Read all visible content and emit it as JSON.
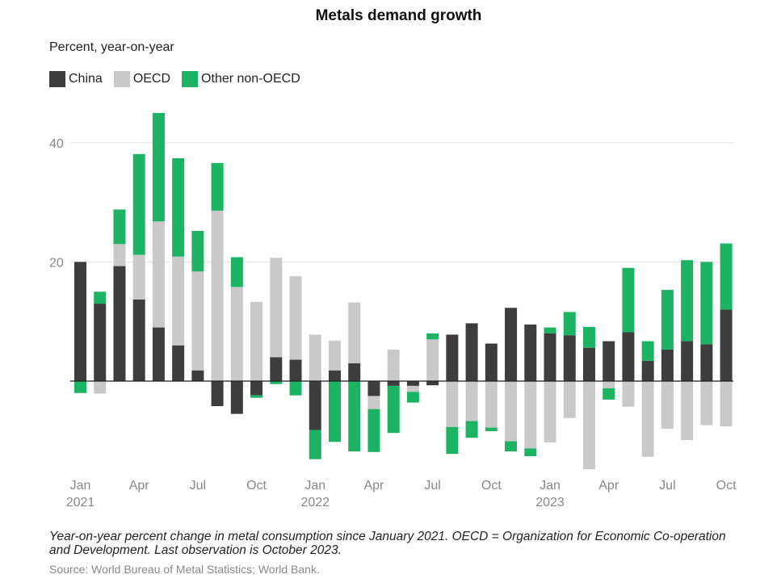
{
  "chart_data": {
    "type": "bar",
    "stacked": true,
    "title": "Metals demand growth",
    "ylabel": "Percent, year-on-year",
    "xlabel": "",
    "ylim": [
      -16,
      47
    ],
    "yticks": [
      20,
      40
    ],
    "grid": true,
    "legend_position": "top-left",
    "categories": [
      "2021-01",
      "2021-02",
      "2021-03",
      "2021-04",
      "2021-05",
      "2021-06",
      "2021-07",
      "2021-08",
      "2021-09",
      "2021-10",
      "2021-11",
      "2021-12",
      "2022-01",
      "2022-02",
      "2022-03",
      "2022-04",
      "2022-05",
      "2022-06",
      "2022-07",
      "2022-08",
      "2022-09",
      "2022-10",
      "2022-11",
      "2022-12",
      "2023-01",
      "2023-02",
      "2023-03",
      "2023-04",
      "2023-05",
      "2023-06",
      "2023-07",
      "2023-08",
      "2023-09",
      "2023-10"
    ],
    "x_tick_labels": [
      {
        "index": 0,
        "line1": "Jan",
        "line2": "2021"
      },
      {
        "index": 3,
        "line1": "Apr",
        "line2": ""
      },
      {
        "index": 6,
        "line1": "Jul",
        "line2": ""
      },
      {
        "index": 9,
        "line1": "Oct",
        "line2": ""
      },
      {
        "index": 12,
        "line1": "Jan",
        "line2": "2022"
      },
      {
        "index": 15,
        "line1": "Apr",
        "line2": ""
      },
      {
        "index": 18,
        "line1": "Jul",
        "line2": ""
      },
      {
        "index": 21,
        "line1": "Oct",
        "line2": ""
      },
      {
        "index": 24,
        "line1": "Jan",
        "line2": "2023"
      },
      {
        "index": 27,
        "line1": "Apr",
        "line2": ""
      },
      {
        "index": 30,
        "line1": "Jul",
        "line2": ""
      },
      {
        "index": 33,
        "line1": "Oct",
        "line2": ""
      }
    ],
    "series": [
      {
        "name": "China",
        "color": "#3d3d3d",
        "values": [
          20.0,
          13.0,
          19.3,
          13.7,
          9.0,
          6.0,
          1.8,
          -4.2,
          -5.5,
          -2.4,
          4.0,
          3.6,
          -8.2,
          1.8,
          3.0,
          -2.5,
          -0.8,
          -0.8,
          -0.7,
          7.8,
          9.7,
          6.3,
          12.3,
          9.5,
          8.0,
          7.7,
          5.6,
          6.7,
          8.2,
          3.4,
          5.3,
          6.7,
          6.2,
          12.0
        ]
      },
      {
        "name": "OECD",
        "color": "#c9c9c9",
        "values": [
          0.0,
          -2.1,
          3.7,
          7.5,
          17.8,
          14.9,
          16.6,
          28.6,
          15.8,
          13.3,
          16.7,
          14.0,
          7.8,
          5.0,
          10.2,
          -2.2,
          5.3,
          -1.0,
          7.0,
          -7.7,
          -6.7,
          -7.8,
          -10.1,
          -11.3,
          -10.3,
          -6.2,
          -14.8,
          -1.2,
          -4.3,
          -12.7,
          -8.0,
          -9.9,
          -7.4,
          -7.6
        ]
      },
      {
        "name": "Other non-OECD",
        "color": "#1db364",
        "values": [
          -2.0,
          2.0,
          5.8,
          16.9,
          18.2,
          16.5,
          6.8,
          8.0,
          5.0,
          -0.4,
          -0.5,
          -2.4,
          -4.9,
          -10.2,
          -11.8,
          -7.2,
          -7.9,
          -1.8,
          1.0,
          -4.5,
          -2.8,
          -0.6,
          -1.7,
          -1.3,
          1.0,
          3.9,
          3.5,
          -1.9,
          10.8,
          3.3,
          10.0,
          13.6,
          13.8,
          11.1
        ]
      }
    ]
  },
  "legend": [
    {
      "label": "China",
      "color": "#3d3d3d"
    },
    {
      "label": "OECD",
      "color": "#c9c9c9"
    },
    {
      "label": "Other non-OECD",
      "color": "#1db364"
    }
  ],
  "note": "Year-on-year percent change in metal consumption since January 2021. OECD = Organization for Economic Co-operation and Development. Last observation is October 2023.",
  "source": "Source: World Bureau of Metal Statistics; World Bank."
}
